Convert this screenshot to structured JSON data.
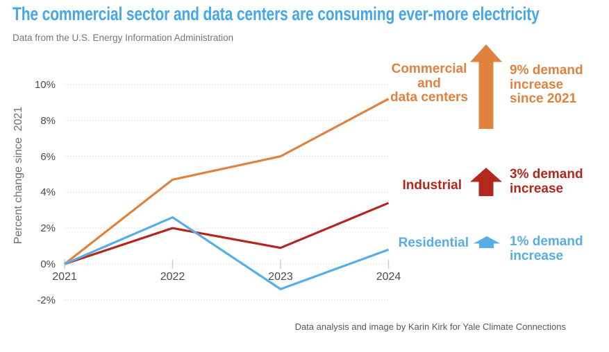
{
  "title": "The commercial sector and data centers are consuming ever-more electricity",
  "subtitle": "Data from the U.S. Energy Information Administration",
  "credit": "Data analysis and image by Karin Kirk for Yale Climate Connections",
  "y_axis_title": "Percent change since  2021",
  "colors": {
    "title": "#45a7e8",
    "grid": "#e2e2e2",
    "tick": "#cfcfcf",
    "axis_text": "#4a4a4a"
  },
  "annotations": {
    "commercial": {
      "label": "Commercial\nand\ndata centers",
      "note": "9% demand\nincrease\nsince 2021",
      "color": "#e0823f"
    },
    "industrial": {
      "label": "Industrial",
      "note": "3% demand\nincrease",
      "color": "#b2271e"
    },
    "residential": {
      "label": "Residential",
      "note": "1% demand\nincrease",
      "color": "#56ade8"
    }
  },
  "chart_data": {
    "type": "line",
    "title": "The commercial sector and data centers are consuming ever-more electricity",
    "subtitle": "Data from the U.S. Energy Information Administration",
    "x": [
      2021,
      2022,
      2023,
      2024
    ],
    "series": [
      {
        "name": "Commercial and data centers",
        "color": "#e0823f",
        "values": [
          0,
          4.7,
          6.0,
          9.2
        ]
      },
      {
        "name": "Industrial",
        "color": "#b2271e",
        "values": [
          0,
          2.0,
          0.9,
          3.4
        ]
      },
      {
        "name": "Residential",
        "color": "#56ade8",
        "values": [
          0,
          2.6,
          -1.4,
          0.8
        ]
      }
    ],
    "xlabel": "",
    "ylabel": "Percent change since 2021",
    "ylim": [
      -2,
      10
    ],
    "yticks": [
      "10%",
      "8%",
      "6%",
      "4%",
      "2%",
      "0%",
      "-2%"
    ],
    "grid": true,
    "legend_position": "right-annotations"
  }
}
